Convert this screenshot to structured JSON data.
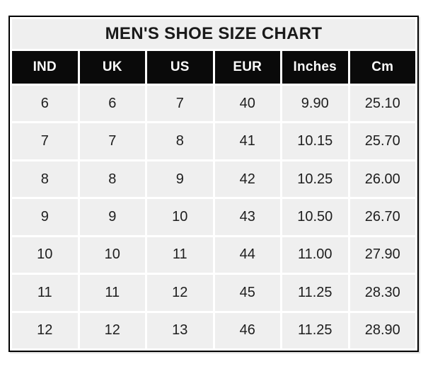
{
  "title": "MEN'S SHOE SIZE CHART",
  "colors": {
    "header_bg": "#0a0a0a",
    "header_text": "#fafafa",
    "cell_bg": "#efefef",
    "gridline": "#ffffff",
    "outer_border": "#000000",
    "body_text": "#1e1e1e"
  },
  "chart_data": {
    "type": "table",
    "title": "MEN'S SHOE SIZE CHART",
    "columns": [
      "IND",
      "UK",
      "US",
      "EUR",
      "Inches",
      "Cm"
    ],
    "rows": [
      [
        "6",
        "6",
        "7",
        "40",
        "9.90",
        "25.10"
      ],
      [
        "7",
        "7",
        "8",
        "41",
        "10.15",
        "25.70"
      ],
      [
        "8",
        "8",
        "9",
        "42",
        "10.25",
        "26.00"
      ],
      [
        "9",
        "9",
        "10",
        "43",
        "10.50",
        "26.70"
      ],
      [
        "10",
        "10",
        "11",
        "44",
        "11.00",
        "27.90"
      ],
      [
        "11",
        "11",
        "12",
        "45",
        "11.25",
        "28.30"
      ],
      [
        "12",
        "12",
        "13",
        "46",
        "11.25",
        "28.90"
      ]
    ]
  }
}
